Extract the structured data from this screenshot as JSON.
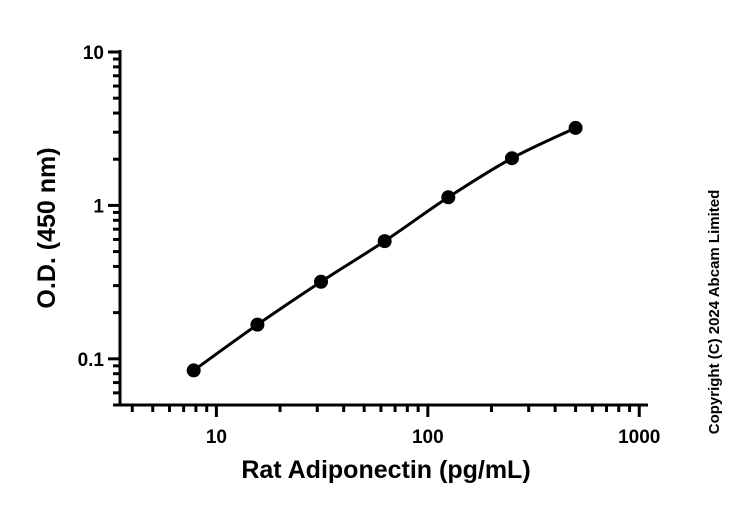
{
  "chart_data": {
    "type": "scatter",
    "xlabel": "Rat Adiponectin (pg/mL)",
    "ylabel": "O.D. (450 nm)",
    "x_scale": "log",
    "y_scale": "log",
    "xlim": [
      3.5,
      1100
    ],
    "ylim": [
      0.05,
      10
    ],
    "x_ticks": [
      {
        "value": 10,
        "label": "10"
      },
      {
        "value": 100,
        "label": "100"
      },
      {
        "value": 1000,
        "label": "1000"
      }
    ],
    "y_ticks": [
      {
        "value": 0.1,
        "label": "0.1"
      },
      {
        "value": 1,
        "label": "1"
      },
      {
        "value": 10,
        "label": "10"
      }
    ],
    "grid": false,
    "legend": "none",
    "series": [
      {
        "x": [
          7.81,
          15.63,
          31.25,
          62.5,
          125,
          250,
          500
        ],
        "y": [
          0.084,
          0.167,
          0.318,
          0.585,
          1.13,
          2.03,
          3.2
        ],
        "marker": "circle",
        "line": "fitted curve",
        "color": "#000000"
      }
    ]
  },
  "copyright": "Copyright (C) 2024 Abcam Limited"
}
